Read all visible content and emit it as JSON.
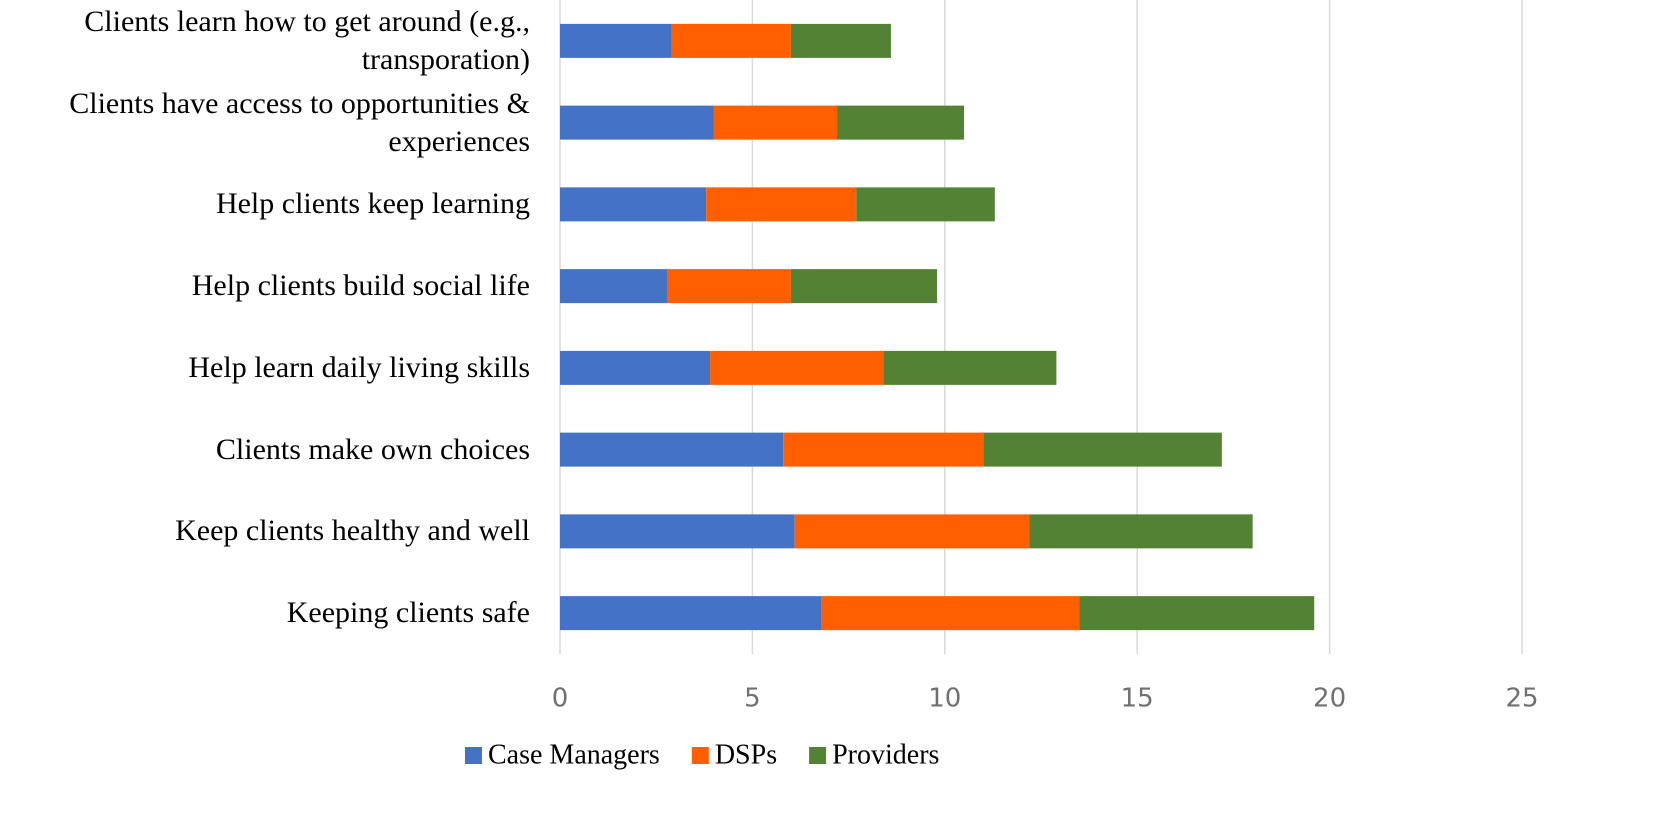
{
  "chart_data": {
    "type": "stacked-bar-horizontal",
    "categories": [
      "Clients learn how to get around (e.g., transporation)",
      "Clients have access to opportunities & experiences",
      "Help clients keep learning",
      "Help clients build social life",
      "Help learn daily living skills",
      "Clients make own choices",
      "Keep clients healthy and well",
      "Keeping clients safe"
    ],
    "series": [
      {
        "name": "Case Managers",
        "color": "#4472c4",
        "values": [
          2.9,
          4.0,
          3.8,
          2.8,
          3.9,
          5.8,
          6.1,
          6.8
        ]
      },
      {
        "name": "DSPs",
        "color": "#ff5f00",
        "values": [
          3.1,
          3.2,
          3.9,
          3.2,
          4.5,
          5.2,
          6.1,
          6.7
        ]
      },
      {
        "name": "Providers",
        "color": "#548235",
        "values": [
          2.6,
          3.3,
          3.6,
          3.8,
          4.5,
          6.2,
          5.8,
          6.1
        ]
      }
    ],
    "xlim": [
      0,
      25
    ],
    "xticks": [
      0,
      5,
      10,
      15,
      20,
      25
    ],
    "grid": true,
    "legend": "bottom"
  }
}
